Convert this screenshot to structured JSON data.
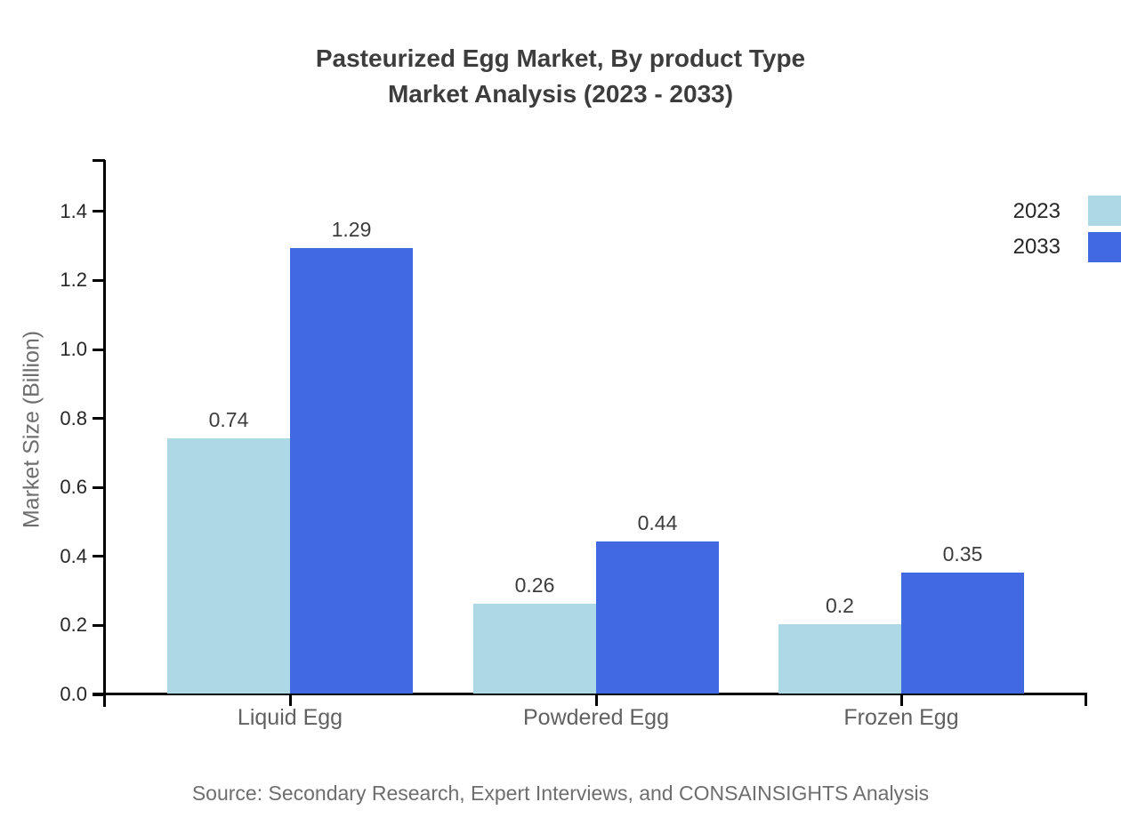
{
  "title": {
    "line1": "Pasteurized Egg Market, By product Type",
    "line2": "Market Analysis (2023 - 2033)"
  },
  "source_note": "Source: Secondary Research, Expert Interviews, and CONSAINSIGHTS Analysis",
  "chart_data": {
    "type": "bar",
    "title": "Pasteurized Egg Market, By product Type Market Analysis (2023 - 2033)",
    "xlabel": "",
    "ylabel": "Market Size (Billion)",
    "categories": [
      "Liquid Egg",
      "Powdered Egg",
      "Frozen Egg"
    ],
    "series": [
      {
        "name": "2023",
        "color": "#ADD8E6",
        "values": [
          0.74,
          0.26,
          0.2
        ]
      },
      {
        "name": "2033",
        "color": "#4169E1",
        "values": [
          1.29,
          0.44,
          0.35
        ]
      }
    ],
    "value_labels": {
      "2023": [
        "0.74",
        "0.26",
        "0.2"
      ],
      "2033": [
        "1.29",
        "0.44",
        "0.35"
      ]
    },
    "ylim": [
      0,
      1.55
    ],
    "yticks": [
      0.0,
      0.2,
      0.4,
      0.6,
      0.8,
      1.0,
      1.2,
      1.4
    ],
    "ytick_labels": [
      "0.0",
      "0.2",
      "0.4",
      "0.6",
      "0.8",
      "1.0",
      "1.2",
      "1.4"
    ],
    "grid": false,
    "legend_position": "top-right",
    "axis_color": "#000000",
    "title_color": "#3d3d3d",
    "label_color": "#616161"
  }
}
